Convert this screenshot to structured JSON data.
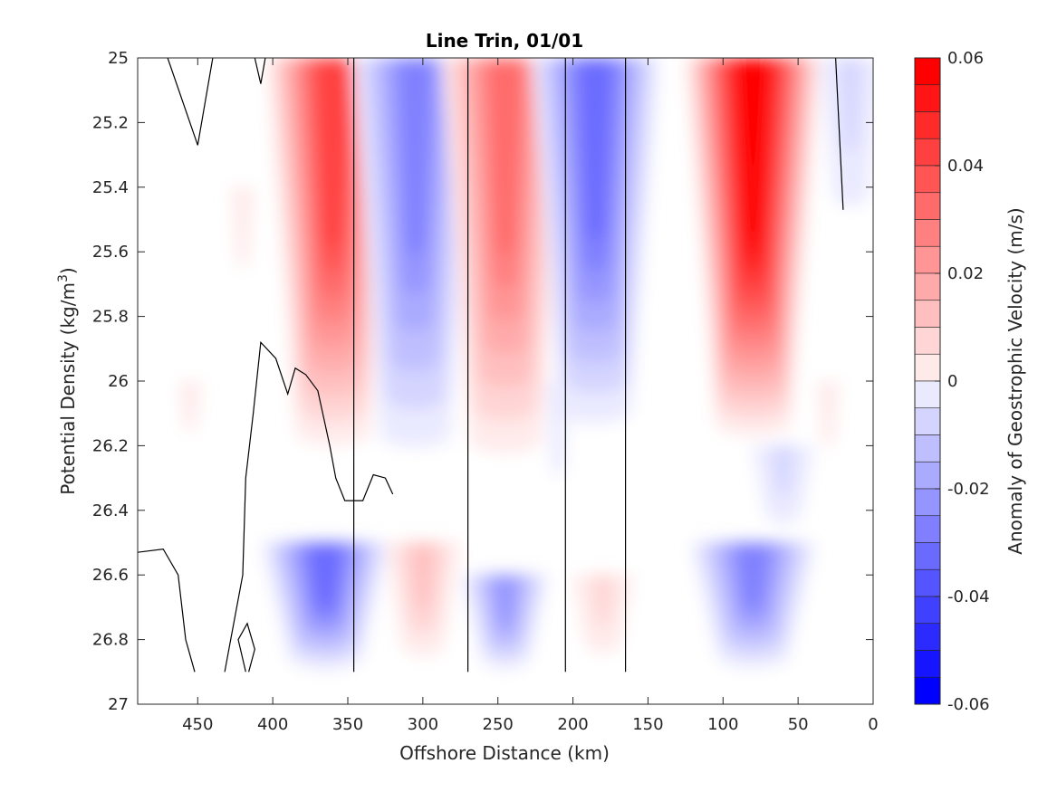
{
  "chart_data": {
    "type": "heatmap",
    "subtype": "filled-contour",
    "title": "Line Trin, 01/01",
    "xlabel": "Offshore Distance (km)",
    "ylabel_main": "Potential Density (kg/m",
    "ylabel_sup": "3",
    "ylabel_close": ")",
    "colorbar_label": "Anomaly of Geostrophic Velocity (m/s)",
    "xlim": [
      490,
      0
    ],
    "x_reversed": true,
    "ylim": [
      25,
      27
    ],
    "y_reversed": true,
    "x_ticks": [
      450,
      400,
      350,
      300,
      250,
      200,
      150,
      100,
      50,
      0
    ],
    "y_ticks": [
      25,
      25.2,
      25.4,
      25.6,
      25.8,
      26,
      26.2,
      26.4,
      26.6,
      26.8,
      27
    ],
    "y_tick_labels": [
      "25",
      "25.2",
      "25.4",
      "25.6",
      "25.8",
      "26",
      "26.2",
      "26.4",
      "26.6",
      "26.8",
      "27"
    ],
    "colorbar_ticks": [
      0.06,
      0.04,
      0.02,
      0,
      -0.02,
      -0.04,
      -0.06
    ],
    "colorbar_tick_labels": [
      "0.06",
      "0.04",
      "0.02",
      "0",
      "-0.02",
      "-0.04",
      "-0.06"
    ],
    "colorbar_range": [
      -0.06,
      0.06
    ],
    "contour_step": 0.005,
    "colormap": {
      "negative_max": "#0000ff",
      "zero": "#ffffff",
      "positive_max": "#ff0000"
    },
    "data_extent_x": [
      460,
      30
    ],
    "data_extent_y": [
      25,
      26.9
    ],
    "velocity_cores": [
      {
        "x": 360,
        "y_top": 25.0,
        "y_bottom": 26.25,
        "peak": 0.045
      },
      {
        "x": 305,
        "y_top": 25.0,
        "y_bottom": 26.3,
        "peak": -0.03
      },
      {
        "x": 245,
        "y_top": 25.0,
        "y_bottom": 26.3,
        "peak": 0.035
      },
      {
        "x": 185,
        "y_top": 25.0,
        "y_bottom": 26.2,
        "peak": -0.035
      },
      {
        "x": 80,
        "y_top": 25.0,
        "y_bottom": 26.2,
        "peak": 0.06
      },
      {
        "x": 15,
        "y_top": 25.0,
        "y_bottom": 25.6,
        "peak": -0.008
      },
      {
        "x": 420,
        "y_top": 25.4,
        "y_bottom": 25.9,
        "peak": 0.007
      },
      {
        "x": 455,
        "y_top": 26.0,
        "y_bottom": 26.3,
        "peak": 0.006
      },
      {
        "x": 365,
        "y_top": 26.5,
        "y_bottom": 26.9,
        "peak": -0.035
      },
      {
        "x": 300,
        "y_top": 26.5,
        "y_bottom": 26.9,
        "peak": 0.017
      },
      {
        "x": 245,
        "y_top": 26.6,
        "y_bottom": 26.9,
        "peak": -0.025
      },
      {
        "x": 180,
        "y_top": 26.6,
        "y_bottom": 26.9,
        "peak": 0.012
      },
      {
        "x": 80,
        "y_top": 26.5,
        "y_bottom": 26.9,
        "peak": -0.03
      },
      {
        "x": 60,
        "y_top": 26.2,
        "y_bottom": 26.5,
        "peak": -0.012
      },
      {
        "x": 210,
        "y_top": 26.0,
        "y_bottom": 26.6,
        "peak": -0.006
      },
      {
        "x": 30,
        "y_top": 26.0,
        "y_bottom": 26.4,
        "peak": 0.007
      }
    ],
    "zero_contours": [
      [
        [
          470,
          25
        ],
        [
          450,
          25.27
        ],
        [
          440,
          25
        ]
      ],
      [
        [
          412,
          25
        ],
        [
          408,
          25.08
        ],
        [
          405,
          25
        ]
      ],
      [
        [
          346,
          25
        ],
        [
          346,
          26.9
        ]
      ],
      [
        [
          270,
          25
        ],
        [
          270,
          26.9
        ]
      ],
      [
        [
          205,
          25
        ],
        [
          205,
          26.9
        ]
      ],
      [
        [
          165,
          25
        ],
        [
          165,
          26.9
        ]
      ],
      [
        [
          25,
          25
        ],
        [
          20,
          25.47
        ]
      ],
      [
        [
          490,
          26.53
        ],
        [
          473,
          26.52
        ],
        [
          463,
          26.6
        ],
        [
          458,
          26.8
        ],
        [
          452,
          26.9
        ]
      ],
      [
        [
          432,
          26.9
        ],
        [
          428,
          26.8
        ],
        [
          420,
          26.6
        ],
        [
          418,
          26.3
        ],
        [
          413,
          26.1
        ],
        [
          408,
          25.88
        ],
        [
          398,
          25.93
        ],
        [
          390,
          26.04
        ],
        [
          385,
          25.96
        ],
        [
          378,
          25.98
        ],
        [
          370,
          26.03
        ],
        [
          362,
          26.2
        ],
        [
          358,
          26.3
        ],
        [
          352,
          26.37
        ],
        [
          340,
          26.37
        ],
        [
          333,
          26.29
        ],
        [
          325,
          26.3
        ],
        [
          320,
          26.35
        ]
      ],
      [
        [
          416,
          26.9
        ],
        [
          412,
          26.83
        ],
        [
          417,
          26.75
        ],
        [
          423,
          26.8
        ],
        [
          418,
          26.9
        ]
      ]
    ]
  }
}
